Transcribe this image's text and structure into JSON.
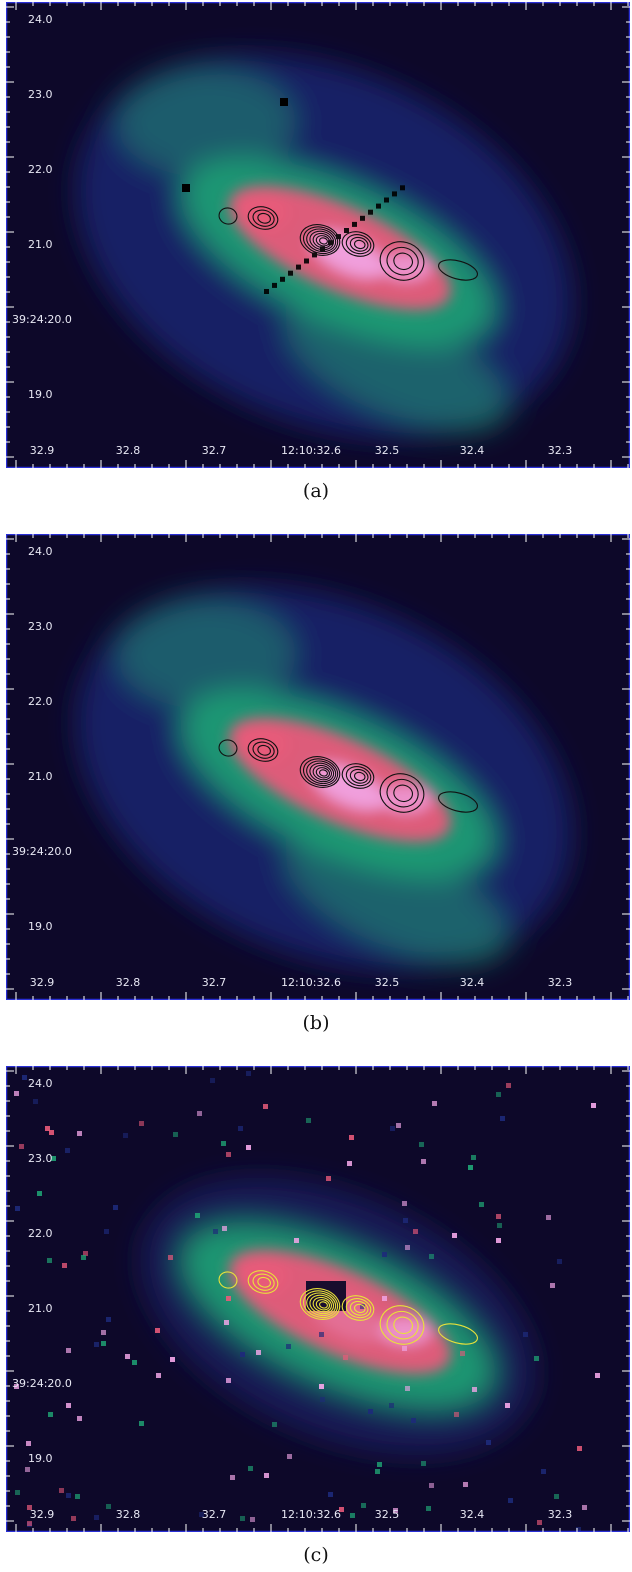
{
  "panels": [
    {
      "id": "a",
      "caption": "(a)",
      "contour_color": "#111111",
      "variant": "a"
    },
    {
      "id": "b",
      "caption": "(b)",
      "contour_color": "#111111",
      "variant": "b"
    },
    {
      "id": "c",
      "caption": "(c)",
      "contour_color": "#e8e23a",
      "variant": "c"
    }
  ],
  "axes": {
    "y_tick_labels": [
      "24.0",
      "23.0",
      "22.0",
      "21.0",
      "39:24:20.0",
      "19.0"
    ],
    "x_tick_labels": [
      "32.9",
      "32.8",
      "32.7",
      "12:10:32.6",
      "32.5",
      "32.4",
      "32.3"
    ]
  },
  "colors": {
    "background": "#0d0829",
    "frame": "#2a2fd6",
    "emission_low": "#1d2a7a",
    "emission_mid": "#1fa374",
    "emission_high": "#e85a7a",
    "emission_peak": "#f2a6e8",
    "tick_text": "#e8e8f4"
  }
}
